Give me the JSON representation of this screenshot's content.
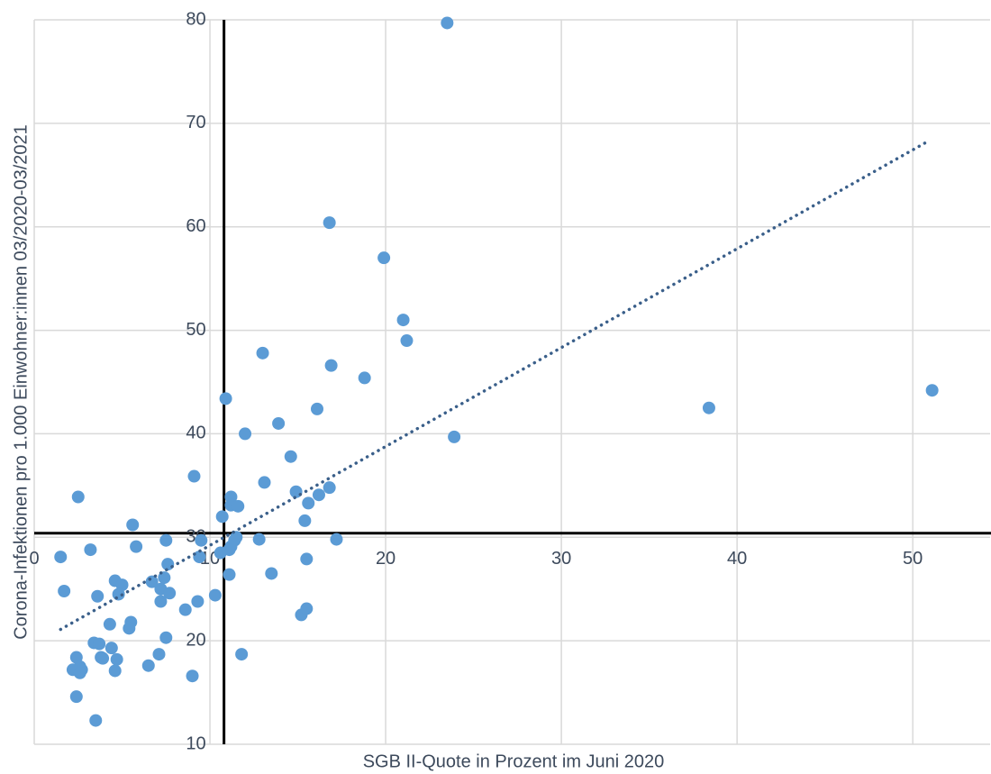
{
  "chart_data": {
    "type": "scatter",
    "x_label": "SGB II-Quote in Prozent im Juni 2020",
    "y_label": "Corona-Infektionen pro 1.000 Einwohner:innen 03/2020-03/2021",
    "xlim": [
      0,
      54.4
    ],
    "ylim": [
      10,
      80
    ],
    "xticks": [
      0,
      10,
      20,
      30,
      40,
      50
    ],
    "yticks": [
      10,
      20,
      30,
      40,
      50,
      60,
      70,
      80
    ],
    "grid": true,
    "color": "#5b9bd5",
    "x": [
      23.5,
      16.8,
      19.9,
      21.0,
      21.2,
      13.0,
      16.9,
      18.8,
      51.1,
      38.4,
      10.9,
      16.1,
      13.9,
      12.0,
      23.9,
      14.6,
      9.1,
      13.1,
      14.9,
      16.8,
      11.2,
      16.2,
      15.6,
      11.2,
      11.6,
      10.7,
      2.5,
      5.6,
      15.4,
      12.8,
      17.2,
      11.5,
      11.4,
      7.5,
      9.5,
      5.8,
      3.2,
      11.2,
      10.6,
      11.1,
      1.5,
      9.4,
      15.5,
      7.6,
      11.1,
      13.5,
      4.6,
      5.0,
      7.4,
      1.7,
      4.8,
      3.6,
      7.2,
      7.7,
      7.2,
      10.3,
      9.3,
      6.7,
      8.6,
      15.2,
      15.5,
      5.5,
      4.3,
      5.4,
      7.5,
      3.4,
      3.7,
      4.4,
      2.4,
      7.1,
      11.8,
      3.8,
      3.9,
      4.7,
      2.6,
      2.7,
      6.5,
      4.6,
      2.2,
      2.6,
      9.0,
      2.4,
      3.5
    ],
    "values": [
      79.7,
      60.4,
      57.0,
      51.0,
      49.0,
      47.8,
      46.6,
      45.4,
      44.2,
      42.5,
      43.4,
      42.4,
      41.0,
      40.0,
      39.7,
      37.8,
      35.9,
      35.3,
      34.4,
      34.8,
      33.9,
      34.1,
      33.3,
      33.1,
      33.0,
      32.0,
      33.9,
      31.2,
      31.6,
      29.8,
      29.8,
      30.0,
      29.7,
      29.7,
      29.7,
      29.1,
      28.8,
      29.1,
      28.5,
      28.8,
      28.1,
      28.1,
      27.9,
      27.4,
      26.4,
      26.5,
      25.8,
      25.4,
      26.1,
      24.8,
      24.5,
      24.3,
      25.0,
      24.6,
      23.8,
      24.4,
      23.8,
      25.7,
      23.0,
      22.5,
      23.1,
      21.8,
      21.6,
      21.2,
      20.3,
      19.8,
      19.7,
      19.3,
      18.4,
      18.7,
      18.7,
      18.4,
      18.3,
      18.2,
      17.5,
      17.2,
      17.6,
      17.1,
      17.2,
      16.9,
      16.6,
      14.6,
      12.3
    ],
    "reference_lines": {
      "x": 10.8,
      "y": 30.4
    },
    "trendline": {
      "x": [
        1.5,
        50.8
      ],
      "y": [
        21.1,
        68.2
      ],
      "color": "#3a5f8a"
    }
  }
}
